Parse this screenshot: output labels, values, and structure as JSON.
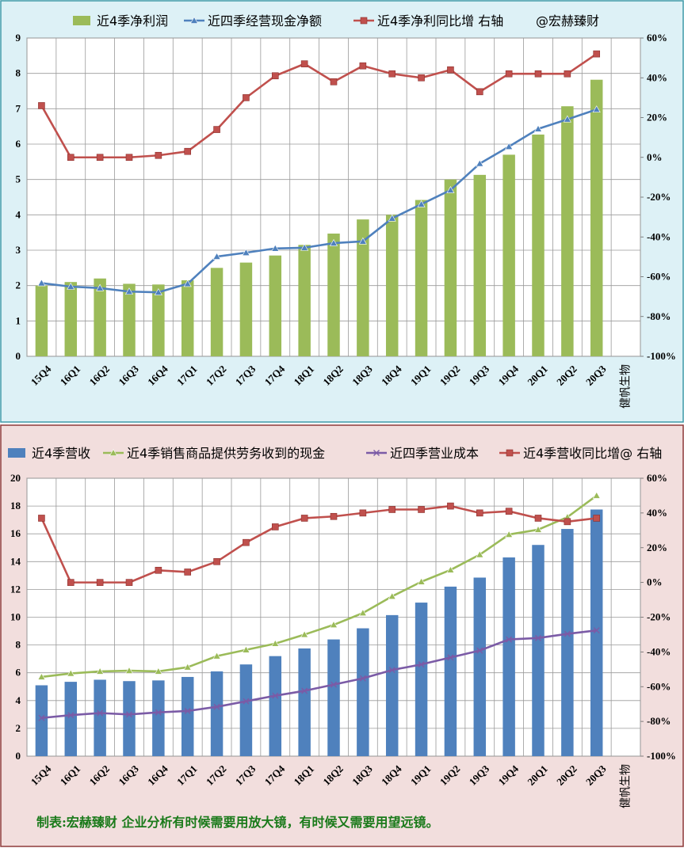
{
  "chart_data": [
    {
      "type": "bar+line",
      "categories": [
        "15Q4",
        "16Q1",
        "16Q2",
        "16Q3",
        "16Q4",
        "17Q1",
        "17Q2",
        "17Q3",
        "17Q4",
        "18Q1",
        "18Q2",
        "18Q3",
        "18Q4",
        "19Q1",
        "19Q2",
        "19Q3",
        "19Q4",
        "20Q1",
        "20Q2",
        "20Q3"
      ],
      "extra_label": "健帆生物",
      "left_axis": {
        "ylim": [
          0,
          9
        ],
        "ticks": [
          "0",
          "1",
          "2",
          "3",
          "4",
          "5",
          "6",
          "7",
          "8",
          "9"
        ]
      },
      "right_axis": {
        "ylim": [
          -100,
          60
        ],
        "ticks": [
          "-100%",
          "-80%",
          "-60%",
          "-40%",
          "-20%",
          "0%",
          "20%",
          "40%",
          "60%"
        ]
      },
      "grid": true,
      "legend_extra": "@宏赫臻财",
      "series": [
        {
          "name": "近4季净利润",
          "kind": "bar",
          "axis": "left",
          "color": "#9BBB59",
          "values": [
            2.0,
            2.1,
            2.2,
            2.05,
            2.03,
            2.15,
            2.5,
            2.65,
            2.85,
            3.15,
            3.47,
            3.87,
            4.0,
            4.42,
            5.0,
            5.13,
            5.7,
            6.27,
            7.07,
            7.82
          ]
        },
        {
          "name": "近四季经营现金净额",
          "kind": "line",
          "marker": "triangle",
          "axis": "left",
          "color": "#4F81BD",
          "values": [
            2.07,
            1.97,
            1.93,
            1.83,
            1.81,
            2.05,
            2.82,
            2.93,
            3.05,
            3.07,
            3.2,
            3.25,
            3.9,
            4.3,
            4.7,
            5.45,
            5.93,
            6.43,
            6.7,
            6.98
          ]
        },
        {
          "name": "近4季净利同比增 右轴",
          "kind": "line",
          "marker": "square",
          "axis": "right",
          "color": "#C0504D",
          "values": [
            26,
            0,
            0,
            0,
            1,
            3,
            14,
            30,
            41,
            47,
            38,
            46,
            42,
            40,
            44,
            33,
            42,
            42,
            42,
            52
          ]
        }
      ]
    },
    {
      "type": "bar+line",
      "categories": [
        "15Q4",
        "16Q1",
        "16Q2",
        "16Q3",
        "16Q4",
        "17Q1",
        "17Q2",
        "17Q3",
        "17Q4",
        "18Q1",
        "18Q2",
        "18Q3",
        "18Q4",
        "19Q1",
        "19Q2",
        "19Q3",
        "19Q4",
        "20Q1",
        "20Q2",
        "20Q3"
      ],
      "extra_label": "健帆生物",
      "left_axis": {
        "ylim": [
          0,
          20
        ],
        "ticks": [
          "0",
          "2",
          "4",
          "6",
          "8",
          "10",
          "12",
          "14",
          "16",
          "18",
          "20"
        ]
      },
      "right_axis": {
        "ylim": [
          -100,
          60
        ],
        "ticks": [
          "-100%",
          "-80%",
          "-60%",
          "-40%",
          "-20%",
          "0%",
          "20%",
          "40%",
          "60%"
        ]
      },
      "grid": true,
      "series": [
        {
          "name": "近4季营收",
          "kind": "bar",
          "axis": "left",
          "color": "#4F81BD",
          "values": [
            5.1,
            5.35,
            5.5,
            5.4,
            5.45,
            5.7,
            6.1,
            6.6,
            7.2,
            7.75,
            8.4,
            9.2,
            10.15,
            11.05,
            12.2,
            12.85,
            14.3,
            15.2,
            16.35,
            17.75
          ]
        },
        {
          "name": "近4季销售商品提供劳务收到的现金",
          "kind": "line",
          "marker": "triangle",
          "axis": "left",
          "color": "#9BBB59",
          "values": [
            5.7,
            5.95,
            6.1,
            6.15,
            6.1,
            6.4,
            7.2,
            7.65,
            8.1,
            8.75,
            9.45,
            10.3,
            11.5,
            12.55,
            13.4,
            14.5,
            15.95,
            16.3,
            17.2,
            18.75
          ]
        },
        {
          "name": "近四季营业成本",
          "kind": "line",
          "marker": "x",
          "axis": "left",
          "color": "#7B5BA6",
          "values": [
            2.75,
            2.95,
            3.1,
            3.0,
            3.15,
            3.25,
            3.55,
            3.95,
            4.35,
            4.7,
            5.15,
            5.6,
            6.2,
            6.6,
            7.1,
            7.6,
            8.4,
            8.5,
            8.8,
            9.05
          ]
        },
        {
          "name": "近4季营收同比增@ 右轴",
          "kind": "line",
          "marker": "square",
          "axis": "right",
          "color": "#C0504D",
          "values": [
            37,
            0,
            0,
            0,
            7,
            6,
            12,
            23,
            32,
            37,
            38,
            40,
            42,
            42,
            44,
            40,
            41,
            37,
            35,
            37
          ]
        }
      ]
    }
  ],
  "footer": "制表:宏赫臻财    企业分析有时候需要用放大镜，有时候又需要用望远镜。"
}
